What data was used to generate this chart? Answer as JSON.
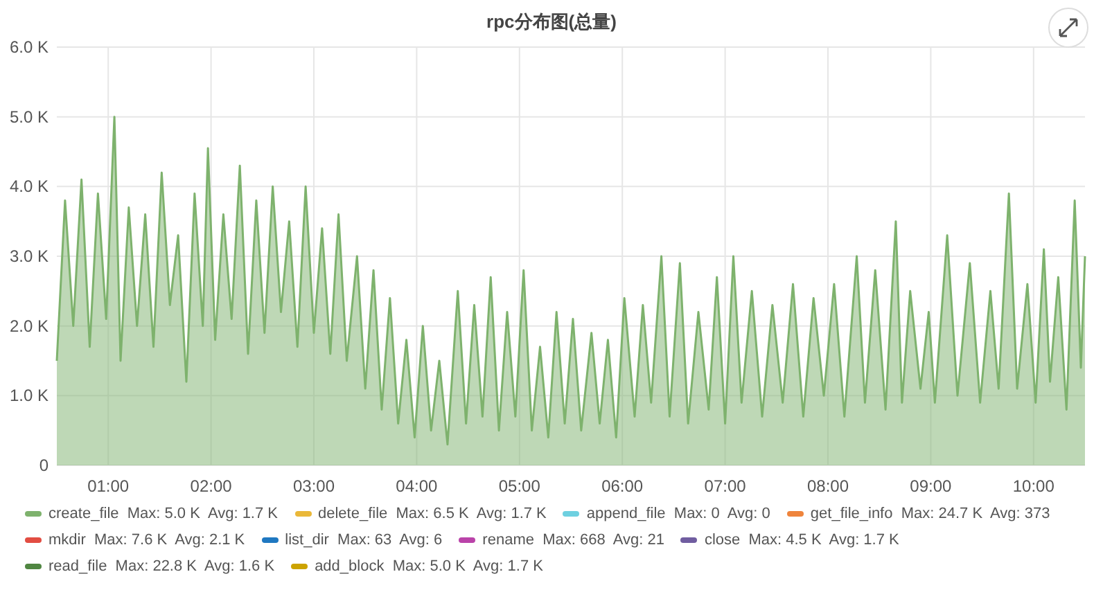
{
  "chart_data": {
    "type": "area",
    "title": "rpc分布图(总量)",
    "xlim": [
      0.5,
      10.5
    ],
    "xticks": [
      {
        "value": 1,
        "label": "01:00"
      },
      {
        "value": 2,
        "label": "02:00"
      },
      {
        "value": 3,
        "label": "03:00"
      },
      {
        "value": 4,
        "label": "04:00"
      },
      {
        "value": 5,
        "label": "05:00"
      },
      {
        "value": 6,
        "label": "06:00"
      },
      {
        "value": 7,
        "label": "07:00"
      },
      {
        "value": 8,
        "label": "08:00"
      },
      {
        "value": 9,
        "label": "09:00"
      },
      {
        "value": 10,
        "label": "10:00"
      }
    ],
    "ylim": [
      0,
      6000
    ],
    "yticks": [
      0,
      {
        "value": 1000,
        "label": "1.0 K"
      },
      {
        "value": 2000,
        "label": "2.0 K"
      },
      {
        "value": 3000,
        "label": "3.0 K"
      },
      {
        "value": 4000,
        "label": "4.0 K"
      },
      {
        "value": 5000,
        "label": "5.0 K"
      },
      {
        "value": 6000,
        "label": "6.0 K"
      }
    ],
    "grid": true,
    "legend": "bottom",
    "series": [
      {
        "name": "create_file  Max: 5.0 K  Avg: 1.7 K",
        "color": "#7eb26d",
        "x": [
          0.5,
          0.58,
          0.66,
          0.74,
          0.82,
          0.9,
          0.98,
          1.06,
          1.12,
          1.2,
          1.28,
          1.36,
          1.44,
          1.52,
          1.6,
          1.68,
          1.76,
          1.84,
          1.92,
          1.97,
          2.04,
          2.12,
          2.2,
          2.28,
          2.36,
          2.44,
          2.52,
          2.6,
          2.68,
          2.76,
          2.84,
          2.92,
          3.0,
          3.08,
          3.16,
          3.24,
          3.32,
          3.42,
          3.5,
          3.58,
          3.66,
          3.74,
          3.82,
          3.9,
          3.98,
          4.06,
          4.14,
          4.22,
          4.3,
          4.4,
          4.48,
          4.56,
          4.64,
          4.72,
          4.8,
          4.88,
          4.96,
          5.04,
          5.12,
          5.2,
          5.28,
          5.36,
          5.44,
          5.52,
          5.6,
          5.7,
          5.78,
          5.86,
          5.94,
          6.02,
          6.12,
          6.2,
          6.28,
          6.38,
          6.46,
          6.56,
          6.64,
          6.74,
          6.84,
          6.92,
          7.0,
          7.08,
          7.16,
          7.26,
          7.36,
          7.46,
          7.56,
          7.66,
          7.76,
          7.86,
          7.96,
          8.06,
          8.16,
          8.28,
          8.36,
          8.46,
          8.56,
          8.66,
          8.72,
          8.8,
          8.9,
          8.98,
          9.04,
          9.16,
          9.26,
          9.38,
          9.48,
          9.58,
          9.66,
          9.76,
          9.84,
          9.94,
          10.02,
          10.1,
          10.16,
          10.24,
          10.32,
          10.4,
          10.46,
          10.5
        ],
        "values": [
          1500,
          3800,
          2000,
          4100,
          1700,
          3900,
          2100,
          5000,
          1500,
          3700,
          2000,
          3600,
          1700,
          4200,
          2300,
          3300,
          1200,
          3900,
          2000,
          4550,
          1800,
          3600,
          2100,
          4300,
          1600,
          3800,
          1900,
          4000,
          2200,
          3500,
          1700,
          4000,
          1900,
          3400,
          1600,
          3600,
          1500,
          3000,
          1100,
          2800,
          800,
          2400,
          600,
          1800,
          400,
          2000,
          500,
          1500,
          300,
          2500,
          600,
          2300,
          700,
          2700,
          500,
          2200,
          700,
          2800,
          500,
          1700,
          400,
          2200,
          600,
          2100,
          500,
          1900,
          600,
          1800,
          400,
          2400,
          700,
          2300,
          900,
          3000,
          700,
          2900,
          600,
          2200,
          800,
          2700,
          600,
          3000,
          900,
          2500,
          700,
          2300,
          900,
          2600,
          700,
          2400,
          1000,
          2600,
          700,
          3000,
          900,
          2800,
          800,
          3500,
          900,
          2500,
          1100,
          2200,
          900,
          3300,
          1000,
          2900,
          900,
          2500,
          1100,
          3900,
          1100,
          2600,
          900,
          3100,
          1200,
          2700,
          800,
          3800,
          1400,
          3000
        ]
      },
      {
        "name": "delete_file  Max: 6.5 K  Avg: 1.7 K",
        "color": "#eab839"
      },
      {
        "name": "append_file  Max: 0  Avg: 0",
        "color": "#6ed0e0"
      },
      {
        "name": "get_file_info  Max: 24.7 K  Avg: 373",
        "color": "#ef843c"
      },
      {
        "name": "mkdir  Max: 7.6 K  Avg: 2.1 K",
        "color": "#e24d42"
      },
      {
        "name": "list_dir  Max: 63  Avg: 6",
        "color": "#1f78c1"
      },
      {
        "name": "rename  Max: 668  Avg: 21",
        "color": "#ba43a9"
      },
      {
        "name": "close  Max: 4.5 K  Avg: 1.7 K",
        "color": "#705da0"
      },
      {
        "name": "read_file  Max: 22.8 K  Avg: 1.6 K",
        "color": "#508642"
      },
      {
        "name": "add_block  Max: 5.0 K  Avg: 1.7 K",
        "color": "#cca300"
      }
    ]
  }
}
